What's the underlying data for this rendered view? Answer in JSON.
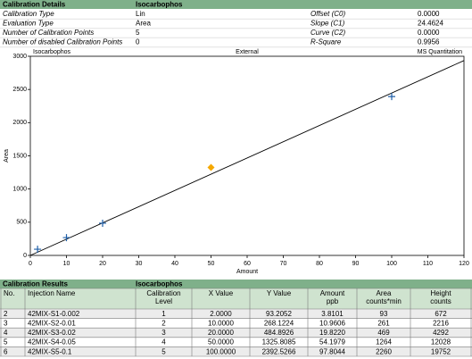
{
  "details": {
    "title": "Calibration Details",
    "compound": "Isocarbophos",
    "rows": [
      [
        "Calibration Type",
        "Lin",
        "Offset (C0)",
        "0.0000"
      ],
      [
        "Evaluation Type",
        "Area",
        "Slope (C1)",
        "24.4624"
      ],
      [
        "Number of Calibration Points",
        "5",
        "Curve (C2)",
        "0.0000"
      ],
      [
        "Number of disabled Calibration Points",
        "0",
        "R-Square",
        "0.9956"
      ]
    ]
  },
  "chart_data": {
    "type": "scatter",
    "title_left": "Isocarbophos",
    "title": "External",
    "title_right": "MS Quantitation",
    "x_label": "Amount",
    "y_label": "Area",
    "x": [
      2,
      10,
      20,
      50,
      100
    ],
    "values": [
      93.2052,
      268.1224,
      484.8926,
      1325.8085,
      2392.5266
    ],
    "colors": [
      "#1f5fa8",
      "#1f5fa8",
      "#1f5fa8",
      "#f5a800",
      "#1f5fa8"
    ],
    "markers": [
      "cross",
      "cross",
      "cross",
      "diamond",
      "cross"
    ],
    "fit": {
      "offset": 0,
      "slope": 24.4624,
      "color": "#000000"
    },
    "xlim": [
      0,
      120
    ],
    "xticks": [
      0,
      10,
      20,
      30,
      40,
      50,
      60,
      70,
      80,
      90,
      100,
      110,
      120
    ],
    "ylim": [
      0,
      3000
    ],
    "yticks": [
      0,
      500,
      1000,
      1500,
      2000,
      2500,
      3000
    ],
    "grid": false
  },
  "results": {
    "title": "Calibration Results",
    "compound": "Isocarbophos",
    "columns": [
      [
        "No."
      ],
      [
        "Injection Name"
      ],
      [
        "Calibration",
        "Level"
      ],
      [
        "X Value"
      ],
      [
        "Y Value"
      ],
      [
        "Amount",
        "ppb"
      ],
      [
        "Area",
        "counts*min"
      ],
      [
        "Height",
        "counts"
      ]
    ],
    "rows": [
      [
        "2",
        "42MIX-S1-0.002",
        "1",
        "2.0000",
        "93.2052",
        "3.8101",
        "93",
        "672"
      ],
      [
        "3",
        "42MIX-S2-0.01",
        "2",
        "10.0000",
        "268.1224",
        "10.9606",
        "261",
        "2216"
      ],
      [
        "4",
        "42MIX-S3-0.02",
        "3",
        "20.0000",
        "484.8926",
        "19.8220",
        "469",
        "4292"
      ],
      [
        "5",
        "42MIX-S4-0.05",
        "4",
        "50.0000",
        "1325.8085",
        "54.1979",
        "1264",
        "12028"
      ],
      [
        "6",
        "42MIX-S5-0.1",
        "5",
        "100.0000",
        "2392.5266",
        "97.8044",
        "2260",
        "19752"
      ]
    ]
  }
}
